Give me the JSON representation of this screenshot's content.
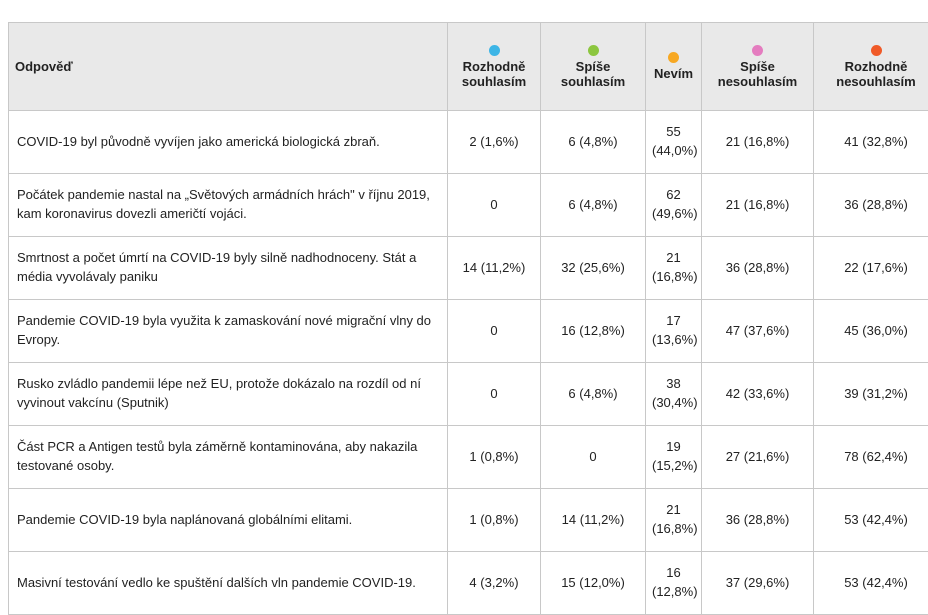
{
  "table": {
    "header": [
      "Odpověď",
      "Rozhodně souhlasím",
      "Spíše souhlasím",
      "Nevím",
      "Spíše nesouhlasím",
      "Rozhodně nesouhlasím"
    ],
    "header_colors": [
      null,
      "#3db5e6",
      "#8cc63f",
      "#f7a823",
      "#e47cbf",
      "#f05a28"
    ],
    "rows": [
      [
        "COVID-19 byl původně vyvíjen jako americká biologická zbraň.",
        "2 (1,6%)",
        "6 (4,8%)",
        "55 (44,0%)",
        "21 (16,8%)",
        "41 (32,8%)"
      ],
      [
        "Počátek pandemie nastal na „Světových armádních hrách\" v říjnu 2019, kam koronavirus dovezli američtí vojáci.",
        "0",
        "6 (4,8%)",
        "62 (49,6%)",
        "21 (16,8%)",
        "36 (28,8%)"
      ],
      [
        "Smrtnost a počet úmrtí na COVID-19 byly silně nadhodnoceny. Stát a média vyvolávaly paniku",
        "14 (11,2%)",
        "32 (25,6%)",
        "21 (16,8%)",
        "36 (28,8%)",
        "22 (17,6%)"
      ],
      [
        "Pandemie COVID-19 byla využita k zamaskování nové migrační vlny do Evropy.",
        "0",
        "16 (12,8%)",
        "17 (13,6%)",
        "47 (37,6%)",
        "45 (36,0%)"
      ],
      [
        "Rusko zvládlo pandemii lépe než EU, protože dokázalo na rozdíl od ní vyvinout vakcínu (Sputnik)",
        "0",
        "6 (4,8%)",
        "38 (30,4%)",
        "42 (33,6%)",
        "39 (31,2%)"
      ],
      [
        "Část PCR a Antigen testů byla záměrně kontaminována, aby nakazila testované osoby.",
        "1 (0,8%)",
        "0",
        "19 (15,2%)",
        "27 (21,6%)",
        "78 (62,4%)"
      ],
      [
        "Pandemie COVID-19 byla naplánovaná globálními elitami.",
        "1 (0,8%)",
        "14 (11,2%)",
        "21 (16,8%)",
        "36 (28,8%)",
        "53 (42,4%)"
      ],
      [
        "Masivní testování vedlo ke spuštění dalších vln pandemie COVID-19.",
        "4 (3,2%)",
        "15 (12,0%)",
        "16 (12,8%)",
        "37 (29,6%)",
        "53 (42,4%)"
      ]
    ]
  }
}
